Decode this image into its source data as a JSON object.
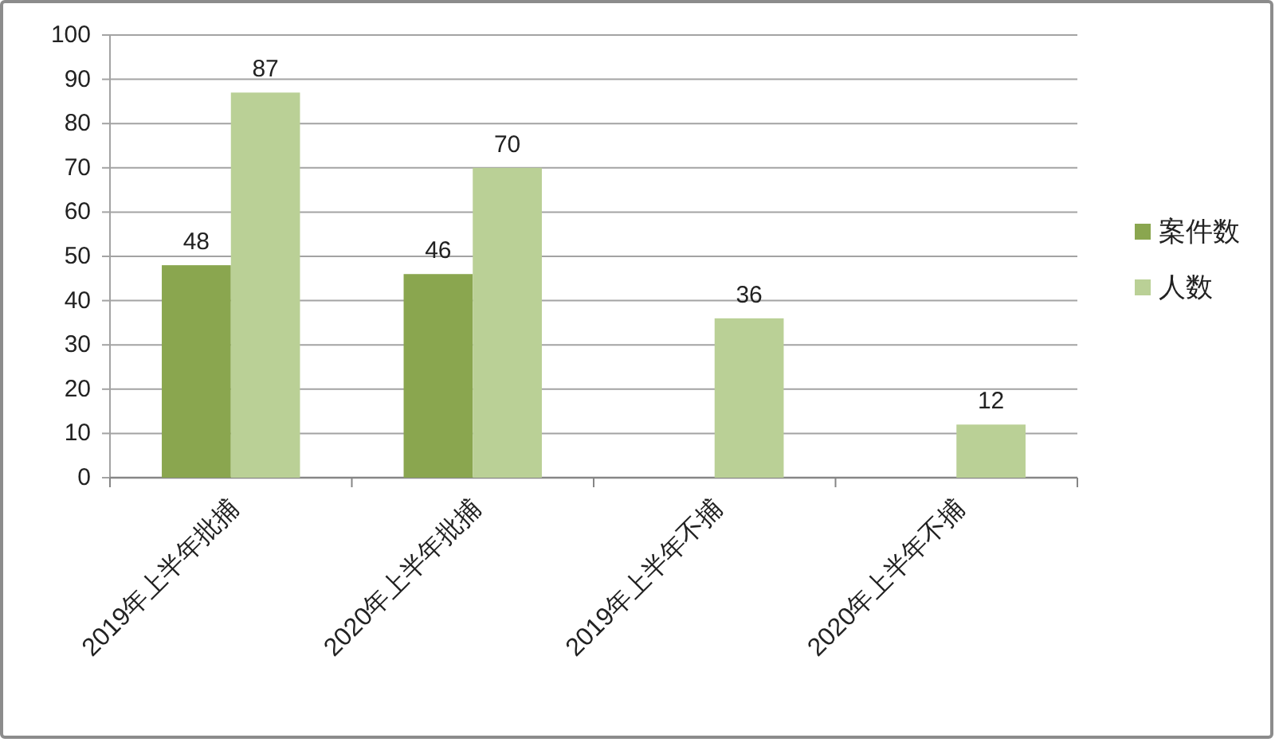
{
  "chart_data": {
    "type": "bar",
    "categories": [
      "2019年上半年批捕",
      "2020年上半年批捕",
      "2019年上半年不捕",
      "2020年上半年不捕"
    ],
    "series": [
      {
        "name": "案件数",
        "color": "#8aa64f",
        "values": [
          48,
          46,
          null,
          null
        ]
      },
      {
        "name": "人数",
        "color": "#bad096",
        "values": [
          87,
          70,
          36,
          12
        ]
      }
    ],
    "ylim": [
      0,
      100
    ],
    "yticks": [
      0,
      10,
      20,
      30,
      40,
      50,
      60,
      70,
      80,
      90,
      100
    ],
    "grid": "y",
    "legend": "right",
    "data_labels": true
  }
}
